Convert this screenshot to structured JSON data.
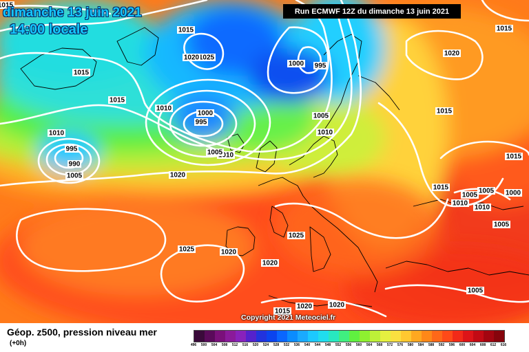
{
  "header": {
    "title_date": "dimanche 13 juin 2021",
    "title_time": "14:00 locale",
    "run_info": "Run ECMWF 12Z du dimanche 13 juin 2021"
  },
  "map": {
    "copyright": "Copyright 2021 Meteociel.fr",
    "isobar_color": "#ffffff",
    "pressure_labels": [
      "1015",
      "1015",
      "1025",
      "1020",
      "1000",
      "995",
      "1015",
      "1015",
      "1010",
      "1010",
      "995",
      "990",
      "1005",
      "1000",
      "995",
      "1015",
      "1005",
      "1010",
      "1010",
      "1005",
      "1020",
      "1015",
      "1020",
      "1025",
      "1025",
      "1020",
      "1020",
      "1020",
      "1020",
      "1015",
      "1005",
      "1000",
      "1010",
      "1010",
      "1005",
      "1005",
      "1015",
      "1015",
      "1005"
    ]
  },
  "legend": {
    "title": "Géop. z500, pression niveau mer",
    "subtitle": "(+0h)",
    "ticks": [
      "496",
      "500",
      "504",
      "508",
      "512",
      "516",
      "520",
      "524",
      "528",
      "532",
      "536",
      "540",
      "544",
      "548",
      "552",
      "556",
      "560",
      "564",
      "568",
      "572",
      "576",
      "580",
      "584",
      "588",
      "592",
      "596",
      "600",
      "604",
      "608",
      "612",
      "616"
    ],
    "colors": [
      "#3a0a3a",
      "#5a0a5a",
      "#7a107a",
      "#8a1a9a",
      "#8822bb",
      "#5522cc",
      "#2233dd",
      "#0b44ee",
      "#0a66ff",
      "#0b8cff",
      "#1aaaff",
      "#1cc9ff",
      "#20ddee",
      "#28e8c0",
      "#40ee80",
      "#60f040",
      "#8ef030",
      "#bdf038",
      "#e5f040",
      "#fae040",
      "#ffc830",
      "#ffa820",
      "#ff8818",
      "#ff6818",
      "#ff4a18",
      "#f22a18",
      "#dd1418",
      "#c20a14",
      "#a30510",
      "#86040c"
    ]
  }
}
